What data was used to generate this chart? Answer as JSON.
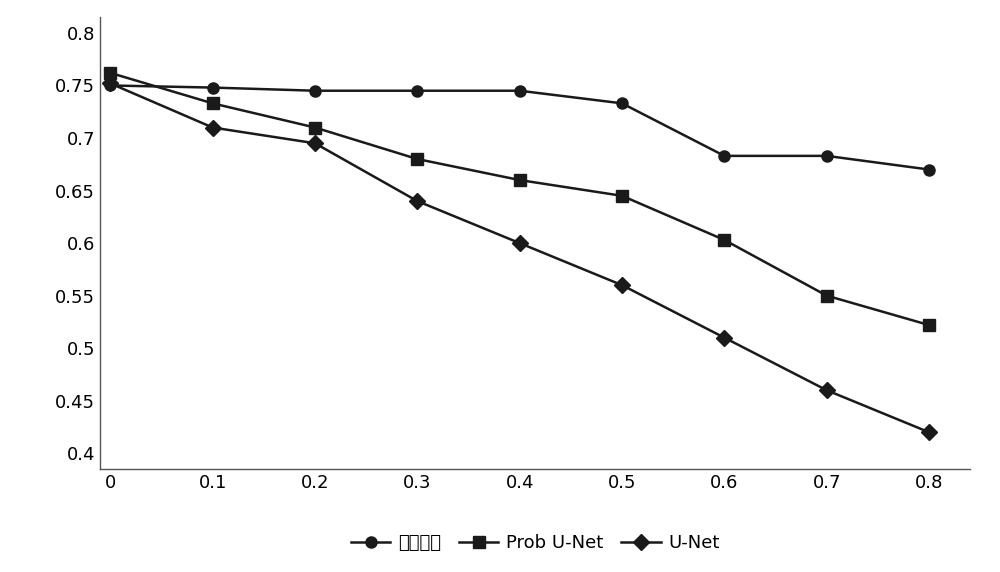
{
  "x": [
    0,
    0.1,
    0.2,
    0.3,
    0.4,
    0.5,
    0.6,
    0.7,
    0.8
  ],
  "series": {
    "ben_wen": {
      "label": "本文方法",
      "values": [
        0.75,
        0.748,
        0.745,
        0.745,
        0.745,
        0.733,
        0.683,
        0.683,
        0.67
      ],
      "color": "#1a1a1a",
      "marker": "o",
      "markersize": 8,
      "linewidth": 1.8
    },
    "prob_unet": {
      "label": "Prob U-Net",
      "values": [
        0.762,
        0.733,
        0.71,
        0.68,
        0.66,
        0.645,
        0.603,
        0.55,
        0.522
      ],
      "color": "#1a1a1a",
      "marker": "s",
      "markersize": 8,
      "linewidth": 1.8
    },
    "unet": {
      "label": "U-Net",
      "values": [
        0.752,
        0.71,
        0.695,
        0.64,
        0.6,
        0.56,
        0.51,
        0.46,
        0.42
      ],
      "color": "#1a1a1a",
      "marker": "D",
      "markersize": 8,
      "linewidth": 1.8
    }
  },
  "xlim": [
    -0.01,
    0.84
  ],
  "ylim": [
    0.385,
    0.815
  ],
  "yticks": [
    0.4,
    0.45,
    0.5,
    0.55,
    0.6,
    0.65,
    0.7,
    0.75,
    0.8
  ],
  "xticks": [
    0,
    0.1,
    0.2,
    0.3,
    0.4,
    0.5,
    0.6,
    0.7,
    0.8
  ],
  "background_color": "#ffffff",
  "tick_fontsize": 13,
  "legend_fontsize": 13
}
